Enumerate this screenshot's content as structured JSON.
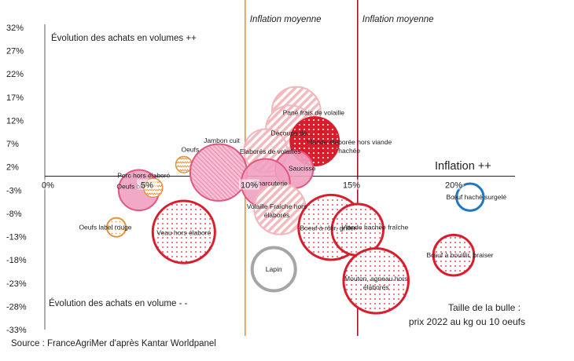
{
  "chart_data": {
    "type": "scatter",
    "title": "",
    "xlim": [
      0,
      23
    ],
    "ylim": [
      -33,
      32
    ],
    "x_ticks": [
      "0%",
      "5%",
      "10%",
      "15%",
      "20%"
    ],
    "x_tick_values": [
      0,
      5,
      10,
      15,
      20
    ],
    "y_ticks": [
      "32%",
      "27%",
      "22%",
      "17%",
      "12%",
      "7%",
      "2%",
      "-3%",
      "-8%",
      "-13%",
      "-18%",
      "-23%",
      "-28%",
      "-33%"
    ],
    "y_tick_values": [
      32,
      27,
      22,
      17,
      12,
      7,
      2,
      -3,
      -8,
      -13,
      -18,
      -23,
      -28,
      -33
    ],
    "annotations": {
      "top_left": "Évolution des achats en volumes ++",
      "bottom_left": "Évolution des achats  en volume - -",
      "inflation_axis": "Inflation ++",
      "size_legend_line1": "Taille de la bulle :",
      "size_legend_line2": "prix 2022 au kg ou 10 oeufs",
      "source": "Source : FranceAgriMer d'après Kantar Worldpanel"
    },
    "reference_lines": [
      {
        "label": "Inflation moyenne",
        "x": 9.8,
        "color": "#e8913a"
      },
      {
        "label": "Inflation moyenne",
        "x": 15.3,
        "color": "#a31621"
      }
    ],
    "colors": {
      "pink_fill": "#f0a0c0",
      "pink_stroke": "#e2577f",
      "red": "#d81e2c",
      "light_red": "#f3b6bb",
      "orange": "#e8913a",
      "blue": "#1f77c4",
      "grey": "#a6a6a6"
    },
    "bubbles": [
      {
        "label": "Oeufs bio",
        "x": 4.6,
        "y": -3,
        "size": 15,
        "style": "pink-solid"
      },
      {
        "label": "Oeufs",
        "x": 6.8,
        "y": 2.5,
        "size": 6,
        "style": "orange-wave"
      },
      {
        "label": "Porc hors élaboré",
        "x": 5.3,
        "y": -2.5,
        "size": 7,
        "style": "orange-wave"
      },
      {
        "label": "Jambon cuit",
        "x": 8.5,
        "y": 0.8,
        "size": 21,
        "style": "pink-hatch"
      },
      {
        "label": "Oeufs  label rouge",
        "x": 3.5,
        "y": -11,
        "size": 7,
        "style": "orange-dotted"
      },
      {
        "label": "Veau hors élaboré",
        "x": 6.8,
        "y": -12,
        "size": 23,
        "style": "red-dotted"
      },
      {
        "label": "Pané frais de volaille",
        "x": 12.3,
        "y": 14,
        "size": 18,
        "style": "lightred-hatch"
      },
      {
        "label": "Découpe de...",
        "x": 12,
        "y": 10,
        "size": 18,
        "style": "lightred-hatch"
      },
      {
        "label": "Viande élaborée hors viande hachée",
        "x": 13.2,
        "y": 7.5,
        "size": 18,
        "style": "red-dots-white"
      },
      {
        "label": "Elaborés de volailles",
        "x": 10.8,
        "y": 5.5,
        "size": 16,
        "style": "lightred-hatch"
      },
      {
        "label": "Saucisse",
        "x": 12.2,
        "y": 1.5,
        "size": 14,
        "style": "pink-solid"
      },
      {
        "label": "Charcuterie",
        "x": 10.8,
        "y": -1.5,
        "size": 18,
        "style": "pink-solid"
      },
      {
        "label": "Volaille Fraiche hors élaborés",
        "x": 11.5,
        "y": -7,
        "size": 19,
        "style": "lightred-hatch"
      },
      {
        "label": "Boeuf à rôtir, griller",
        "x": 14,
        "y": -11,
        "size": 24,
        "style": "red-dotted"
      },
      {
        "label": "Viande hachée fraîche",
        "x": 15.3,
        "y": -11.5,
        "size": 19,
        "style": "red-dotted"
      },
      {
        "label": "Lapin",
        "x": 11.2,
        "y": -20,
        "size": 16,
        "style": "grey-ring"
      },
      {
        "label": "Mouton, agneau hors élaborés",
        "x": 16.2,
        "y": -22.5,
        "size": 24,
        "style": "red-dotted"
      },
      {
        "label": "Bœuf à bouillir, braiser",
        "x": 20,
        "y": -17,
        "size": 15,
        "style": "red-dotted"
      },
      {
        "label": "Bœuf haché surgelé",
        "x": 20.8,
        "y": -4.5,
        "size": 10,
        "style": "blue-ring"
      }
    ]
  }
}
